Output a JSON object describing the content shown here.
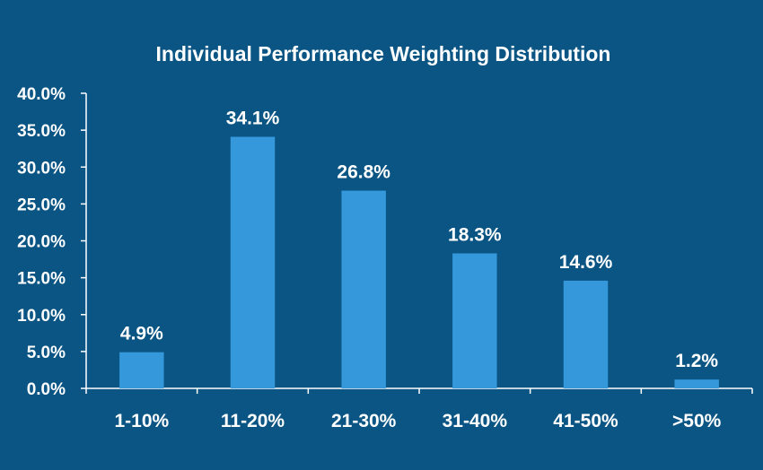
{
  "chart_data": {
    "type": "bar",
    "title": "Individual Performance Weighting Distribution",
    "xlabel": "",
    "ylabel": "",
    "categories": [
      "1-10%",
      "11-20%",
      "21-30%",
      "31-40%",
      "41-50%",
      ">50%"
    ],
    "values": [
      4.9,
      34.1,
      26.8,
      18.3,
      14.6,
      1.2
    ],
    "value_labels": [
      "4.9%",
      "34.1%",
      "26.8%",
      "18.3%",
      "14.6%",
      "1.2%"
    ],
    "ylim": [
      0,
      40
    ],
    "yticks": [
      0,
      5,
      10,
      15,
      20,
      25,
      30,
      35,
      40
    ],
    "ytick_labels": [
      "0.0%",
      "5.0%",
      "10.0%",
      "15.0%",
      "20.0%",
      "25.0%",
      "30.0%",
      "35.0%",
      "40.0%"
    ],
    "grid": false,
    "legend": "none",
    "colors": {
      "background": "#0b5584",
      "bar": "#3498db",
      "axis": "#ffffff",
      "text": "#ffffff"
    }
  }
}
